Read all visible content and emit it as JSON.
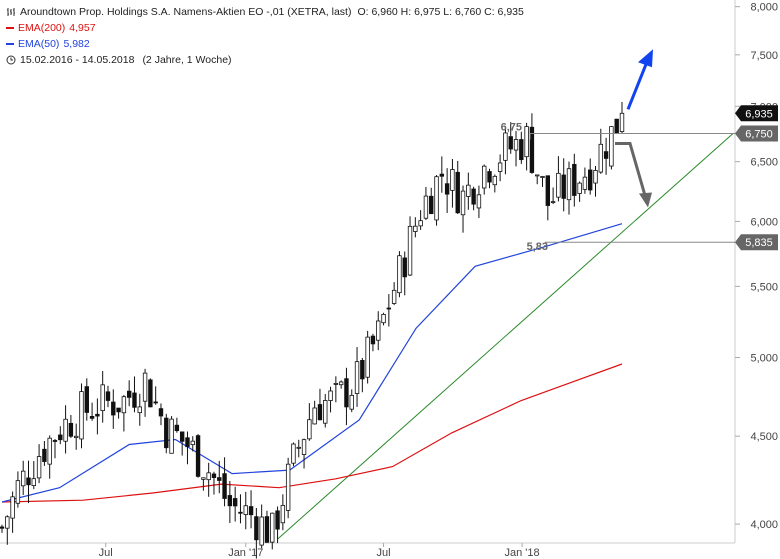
{
  "header": {
    "instrument": "Aroundtown Prop. Holdings S.A. Namens-Aktien EO -,01 (XETRA, last)",
    "ohlc": "O: 6,960  H: 6,975  L: 6,760  C: 6,935",
    "period": "15.02.2016 - 14.05.2018",
    "period_note": "(2 Jahre, 1 Woche)"
  },
  "legend": {
    "ema200": {
      "label": "EMA(200)",
      "value": "4,957",
      "color": "#dd1111"
    },
    "ema50": {
      "label": "EMA(50)",
      "value": "5,982",
      "color": "#2244dd"
    }
  },
  "icons": {
    "bars": "ohlc-bars-icon",
    "clock": "clock-icon"
  },
  "colors": {
    "trendline": "#2a8a2a",
    "annotation": "#666666",
    "arrow_up": "#1144ee",
    "candle": "#111111"
  },
  "chart_data": {
    "type": "candlestick",
    "scale": "log",
    "x_range": [
      "2016-02-15",
      "2018-05-14"
    ],
    "ylim": [
      3.9,
      8.05
    ],
    "y_ticks": [
      4.0,
      4.5,
      5.0,
      5.5,
      6.0,
      6.5,
      7.0,
      7.5,
      8.0
    ],
    "y_tick_labels": [
      "4,000",
      "4,500",
      "5,000",
      "5,500",
      "6,000",
      "6,500",
      "7,000",
      "7,500",
      "8,000"
    ],
    "x_ticks": [
      {
        "date": "2016-07-01",
        "label": "Jul"
      },
      {
        "date": "2017-01-02",
        "label": "Jan '17"
      },
      {
        "date": "2017-07-03",
        "label": "Jul"
      },
      {
        "date": "2018-01-02",
        "label": "Jan '18"
      }
    ],
    "last_close": 6.935,
    "last_close_label": "6,935",
    "candles_weekly_close": [
      [
        "2016-02-15",
        3.98
      ],
      [
        "2016-03-07",
        4.2
      ],
      [
        "2016-04-04",
        4.4
      ],
      [
        "2016-05-02",
        4.55
      ],
      [
        "2016-05-30",
        4.65
      ],
      [
        "2016-06-27",
        4.7
      ],
      [
        "2016-07-25",
        4.72
      ],
      [
        "2016-08-22",
        4.85
      ],
      [
        "2016-09-19",
        4.55
      ],
      [
        "2016-10-17",
        4.45
      ],
      [
        "2016-11-14",
        4.3
      ],
      [
        "2016-12-12",
        4.1
      ],
      [
        "2017-01-09",
        4.05
      ],
      [
        "2017-02-06",
        3.95
      ],
      [
        "2017-03-06",
        4.35
      ],
      [
        "2017-04-03",
        4.7
      ],
      [
        "2017-05-01",
        4.72
      ],
      [
        "2017-05-29",
        4.85
      ],
      [
        "2017-06-26",
        5.15
      ],
      [
        "2017-07-24",
        5.6
      ],
      [
        "2017-08-21",
        6.1
      ],
      [
        "2017-09-18",
        6.4
      ],
      [
        "2017-10-16",
        6.2
      ],
      [
        "2017-11-13",
        6.45
      ],
      [
        "2017-12-11",
        6.6
      ],
      [
        "2018-01-08",
        6.7
      ],
      [
        "2018-02-05",
        6.15
      ],
      [
        "2018-03-05",
        6.3
      ],
      [
        "2018-04-02",
        6.45
      ],
      [
        "2018-04-30",
        6.75
      ],
      [
        "2018-05-14",
        6.935
      ]
    ],
    "ema200": [
      [
        "2016-02-15",
        4.12
      ],
      [
        "2016-06-01",
        4.13
      ],
      [
        "2016-09-01",
        4.17
      ],
      [
        "2016-12-01",
        4.22
      ],
      [
        "2017-02-15",
        4.2
      ],
      [
        "2017-05-01",
        4.25
      ],
      [
        "2017-07-15",
        4.32
      ],
      [
        "2017-10-01",
        4.52
      ],
      [
        "2018-01-01",
        4.72
      ],
      [
        "2018-05-14",
        4.957
      ]
    ],
    "ema50": [
      [
        "2016-02-15",
        4.12
      ],
      [
        "2016-05-01",
        4.2
      ],
      [
        "2016-08-01",
        4.45
      ],
      [
        "2016-10-01",
        4.48
      ],
      [
        "2016-12-15",
        4.28
      ],
      [
        "2017-03-01",
        4.3
      ],
      [
        "2017-06-01",
        4.6
      ],
      [
        "2017-08-15",
        5.2
      ],
      [
        "2017-11-01",
        5.65
      ],
      [
        "2018-02-01",
        5.8
      ],
      [
        "2018-05-14",
        5.982
      ]
    ],
    "annotations": {
      "resistance": {
        "value": 6.75,
        "label": "6,75",
        "tag": "6,750"
      },
      "support": {
        "value": 5.835,
        "label": "5,83",
        "tag": "5,835"
      },
      "trendline": {
        "from": [
          "2017-02-13",
          3.92
        ],
        "to": [
          "2018-05-14",
          6.75
        ]
      },
      "arrow_up": "blue upward arrow",
      "arrow_down": "grey downward arrow"
    }
  }
}
